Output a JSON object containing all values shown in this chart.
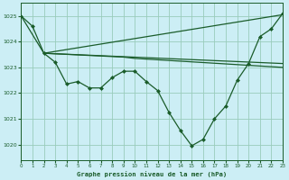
{
  "bg_color": "#cceef5",
  "grid_color": "#99ccbb",
  "line_color": "#1a5c2a",
  "title": "Graphe pression niveau de la mer (hPa)",
  "xlim": [
    0,
    23
  ],
  "ylim": [
    1019.4,
    1025.5
  ],
  "yticks": [
    1020,
    1021,
    1022,
    1023,
    1024,
    1025
  ],
  "xticks": [
    0,
    1,
    2,
    3,
    4,
    5,
    6,
    7,
    8,
    9,
    10,
    11,
    12,
    13,
    14,
    15,
    16,
    17,
    18,
    19,
    20,
    21,
    22,
    23
  ],
  "line1_x": [
    0,
    1,
    2,
    3,
    4,
    5,
    6,
    7,
    8,
    9,
    10,
    11,
    12,
    13,
    14,
    15,
    16,
    17,
    18,
    19,
    20,
    21,
    22,
    23
  ],
  "line1_y": [
    1025.0,
    1024.6,
    1023.55,
    1023.2,
    1022.35,
    1022.45,
    1022.2,
    1022.2,
    1022.6,
    1022.85,
    1022.85,
    1022.45,
    1022.1,
    1021.25,
    1020.55,
    1019.95,
    1020.2,
    1021.0,
    1021.5,
    1022.5,
    1023.15,
    1024.2,
    1024.5,
    1025.1
  ],
  "line2_x": [
    0,
    2,
    23
  ],
  "line2_y": [
    1025.0,
    1023.55,
    1025.05
  ],
  "line3_x": [
    2,
    23
  ],
  "line3_y": [
    1023.55,
    1023.15
  ],
  "line4_x": [
    2,
    9,
    10,
    23
  ],
  "line4_y": [
    1023.55,
    1023.4,
    1023.35,
    1023.0
  ],
  "marker_size": 2.5,
  "line_width": 0.9
}
